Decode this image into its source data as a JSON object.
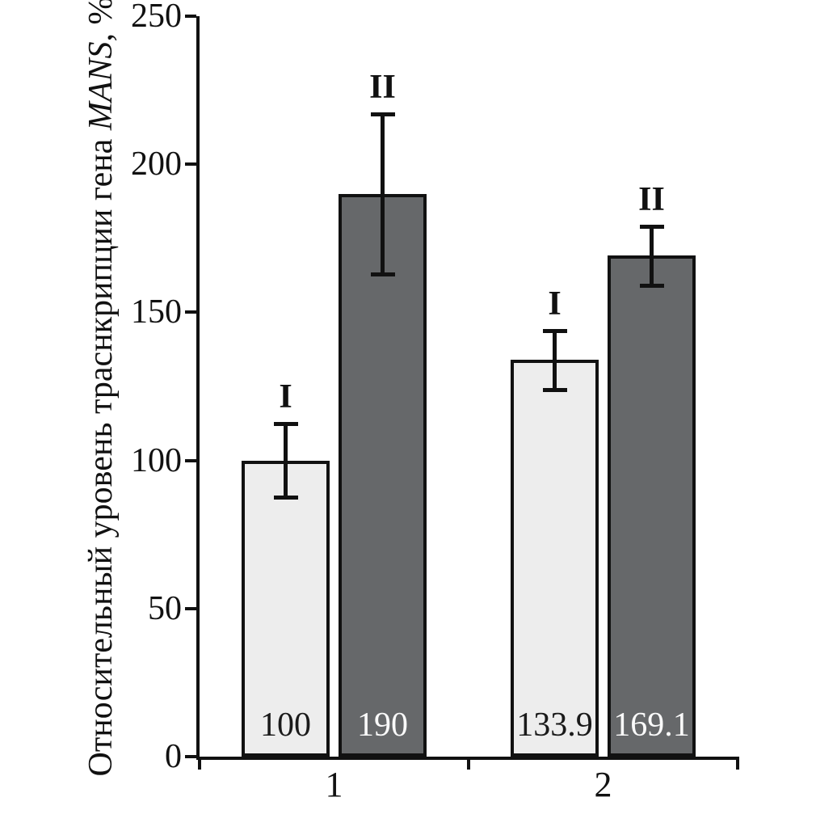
{
  "chart_data": {
    "type": "bar",
    "title": "",
    "ylabel": "Относительный уровень траснкрипции гена MANS, %",
    "ylabel_parts": {
      "prefix": "Относительный уровень траснкрипции гена ",
      "italic_segment": "MANS",
      "suffix": ", %"
    },
    "ylim": [
      0,
      250
    ],
    "yticks": [
      0,
      50,
      100,
      150,
      200,
      250
    ],
    "categories": [
      "1",
      "2"
    ],
    "series": [
      {
        "name": "I",
        "values": [
          100,
          133.9
        ],
        "errors": [
          12.5,
          10
        ],
        "value_labels": [
          "100",
          "133.9"
        ],
        "fill": "#ededed",
        "value_label_color": "#1a1a1a"
      },
      {
        "name": "II",
        "values": [
          190,
          169.1
        ],
        "errors": [
          27,
          10
        ],
        "value_labels": [
          "190",
          "169.1"
        ],
        "fill": "#66686a",
        "value_label_color": "#fafafa"
      }
    ],
    "grid": false,
    "legend_position": "none",
    "axis_color": "#111111",
    "background": "#ffffff"
  }
}
